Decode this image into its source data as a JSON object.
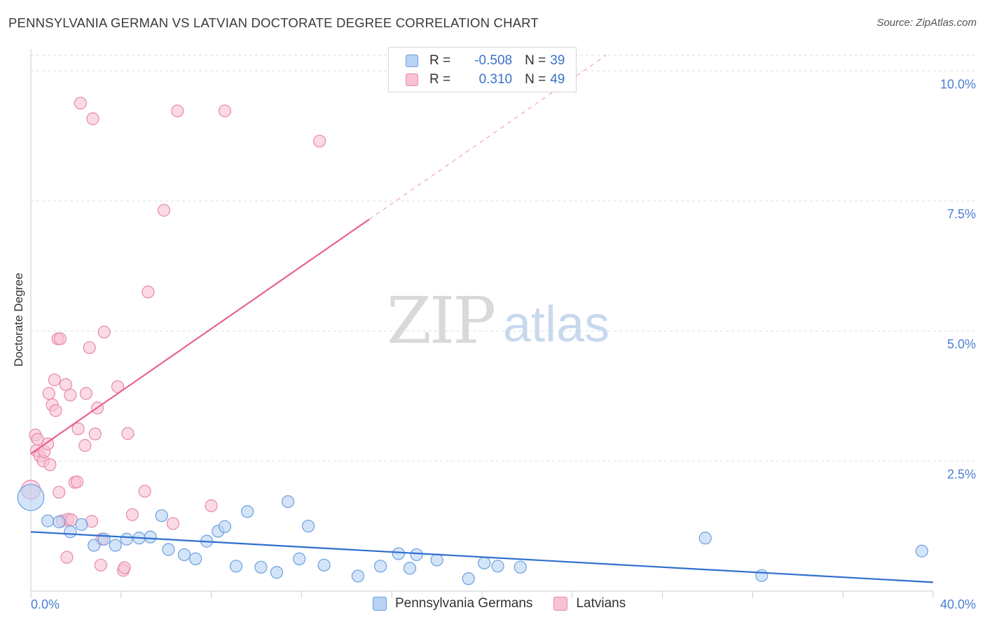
{
  "title": "PENNSYLVANIA GERMAN VS LATVIAN DOCTORATE DEGREE CORRELATION CHART",
  "source": "Source: ZipAtlas.com",
  "watermark": {
    "zip": "ZIP",
    "atlas": "atlas"
  },
  "legend": {
    "rows": [
      {
        "r_label": "R =",
        "r_value": "-0.508",
        "n_label": "N =",
        "n_value": "39"
      },
      {
        "r_label": "R =",
        "r_value": "0.310",
        "n_label": "N =",
        "n_value": "49"
      }
    ]
  },
  "bottom_legend": [
    "Pennsylvania Germans",
    "Latvians"
  ],
  "colors": {
    "blue_fill": "#b8d2f3",
    "blue_stroke": "#6a9fe0",
    "blue_line": "#2f6fcf",
    "pink_fill": "#f8c2d3",
    "pink_stroke": "#e58aa8",
    "pink_line": "#e8628d",
    "grid": "#dddddd",
    "tick_text": "#4a7fd0"
  },
  "chart_data": {
    "type": "scatter",
    "title": "PENNSYLVANIA GERMAN VS LATVIAN DOCTORATE DEGREE CORRELATION CHART",
    "xlabel": "",
    "ylabel": "Doctorate Degree",
    "xlim": [
      0,
      40
    ],
    "ylim": [
      0,
      10.3
    ],
    "x_tick_labels": [
      "0.0%",
      "40.0%"
    ],
    "y_ticks": [
      2.5,
      5.0,
      7.5,
      10.0
    ],
    "y_tick_labels": [
      "2.5%",
      "5.0%",
      "7.5%",
      "10.0%"
    ],
    "grid": true,
    "legend_position": "top-center",
    "series": [
      {
        "name": "Pennsylvania Germans",
        "r": -0.508,
        "n": 39,
        "trend": {
          "x0": 0,
          "y0": 1.14,
          "x1": 40,
          "y1": 0.17,
          "solid_to": 40
        },
        "points": [
          [
            0.0,
            1.8,
            2.2
          ],
          [
            0.75,
            1.35,
            1
          ],
          [
            1.25,
            1.33,
            1
          ],
          [
            1.75,
            1.14,
            1
          ],
          [
            2.25,
            1.28,
            1
          ],
          [
            2.8,
            0.88,
            1
          ],
          [
            3.25,
            1.0,
            1
          ],
          [
            3.75,
            0.88,
            1
          ],
          [
            4.25,
            1.0,
            1
          ],
          [
            4.8,
            1.02,
            1
          ],
          [
            5.3,
            1.04,
            1
          ],
          [
            5.8,
            1.45,
            1
          ],
          [
            6.1,
            0.8,
            1
          ],
          [
            6.8,
            0.7,
            1
          ],
          [
            7.3,
            0.62,
            1
          ],
          [
            7.8,
            0.96,
            1
          ],
          [
            8.3,
            1.15,
            1
          ],
          [
            8.6,
            1.24,
            1
          ],
          [
            9.1,
            0.48,
            1
          ],
          [
            9.6,
            1.53,
            1
          ],
          [
            10.2,
            0.46,
            1
          ],
          [
            10.9,
            0.36,
            1
          ],
          [
            11.4,
            1.72,
            1
          ],
          [
            11.9,
            0.62,
            1
          ],
          [
            12.3,
            1.25,
            1
          ],
          [
            13.0,
            0.5,
            1
          ],
          [
            14.5,
            0.29,
            1
          ],
          [
            15.5,
            0.48,
            1
          ],
          [
            16.3,
            0.72,
            1
          ],
          [
            16.8,
            0.44,
            1
          ],
          [
            17.1,
            0.7,
            1
          ],
          [
            18.0,
            0.6,
            1
          ],
          [
            19.4,
            0.24,
            1
          ],
          [
            20.1,
            0.54,
            1
          ],
          [
            20.7,
            0.48,
            1
          ],
          [
            21.7,
            0.46,
            1
          ],
          [
            29.9,
            1.02,
            1
          ],
          [
            32.4,
            0.3,
            1
          ],
          [
            39.5,
            0.77,
            1
          ]
        ]
      },
      {
        "name": "Latvians",
        "r": 0.31,
        "n": 49,
        "trend": {
          "x0": 0,
          "y0": 2.64,
          "x1": 25.5,
          "y1": 10.3,
          "solid_to": 15
        },
        "points": [
          [
            0.0,
            1.95,
            1.6
          ],
          [
            0.2,
            3.0,
            1
          ],
          [
            0.25,
            2.7,
            1
          ],
          [
            0.3,
            2.92,
            1
          ],
          [
            0.4,
            2.6,
            1
          ],
          [
            0.55,
            2.5,
            1
          ],
          [
            0.6,
            2.68,
            1
          ],
          [
            0.75,
            2.83,
            1
          ],
          [
            0.8,
            3.8,
            1
          ],
          [
            0.85,
            2.43,
            1
          ],
          [
            0.95,
            3.58,
            1
          ],
          [
            1.05,
            4.06,
            1
          ],
          [
            1.1,
            3.47,
            1
          ],
          [
            1.2,
            4.85,
            1
          ],
          [
            1.3,
            4.85,
            1
          ],
          [
            1.25,
            1.9,
            1
          ],
          [
            1.4,
            1.35,
            1
          ],
          [
            1.55,
            3.97,
            1
          ],
          [
            1.65,
            1.38,
            1
          ],
          [
            1.6,
            0.65,
            1
          ],
          [
            1.75,
            3.77,
            1
          ],
          [
            1.8,
            1.37,
            1
          ],
          [
            1.95,
            2.09,
            1
          ],
          [
            2.05,
            2.1,
            1
          ],
          [
            2.1,
            3.12,
            1
          ],
          [
            2.2,
            9.38,
            1
          ],
          [
            2.4,
            2.8,
            1
          ],
          [
            2.45,
            3.8,
            1
          ],
          [
            2.6,
            4.68,
            1
          ],
          [
            2.75,
            9.08,
            1
          ],
          [
            2.7,
            1.34,
            1
          ],
          [
            2.85,
            3.02,
            1
          ],
          [
            2.95,
            3.52,
            1
          ],
          [
            3.1,
            0.5,
            1
          ],
          [
            3.15,
            1.0,
            1
          ],
          [
            3.25,
            4.98,
            1
          ],
          [
            3.85,
            3.93,
            1
          ],
          [
            4.1,
            0.4,
            1
          ],
          [
            4.15,
            0.45,
            1
          ],
          [
            4.3,
            3.03,
            1
          ],
          [
            4.5,
            1.47,
            1
          ],
          [
            5.05,
            1.92,
            1
          ],
          [
            5.2,
            5.75,
            1
          ],
          [
            5.9,
            7.32,
            1
          ],
          [
            6.3,
            1.3,
            1
          ],
          [
            6.5,
            9.23,
            1
          ],
          [
            8.0,
            1.64,
            1
          ],
          [
            8.6,
            9.23,
            1
          ],
          [
            12.8,
            8.65,
            1
          ]
        ]
      }
    ]
  }
}
